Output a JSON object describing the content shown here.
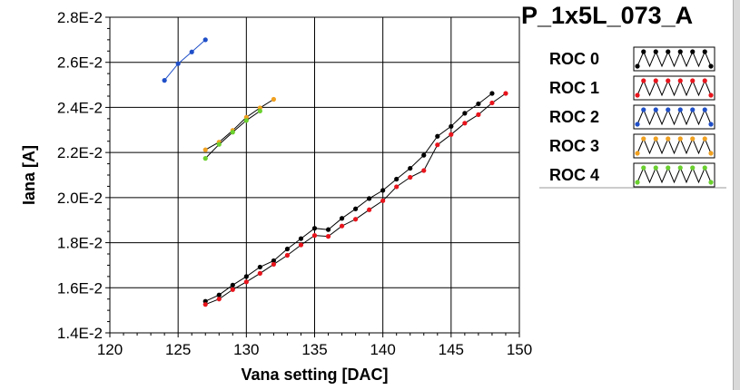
{
  "chart_data": {
    "type": "line",
    "title": "P_1x5L_073_A",
    "xlabel": "Vana setting [DAC]",
    "ylabel": "Iana [A]",
    "xlim": [
      120,
      150
    ],
    "ylim": [
      0.014,
      0.028
    ],
    "x_ticks": [
      120,
      125,
      130,
      135,
      140,
      145,
      150
    ],
    "x_tick_labels": [
      "120",
      "125",
      "130",
      "135",
      "140",
      "145",
      "150"
    ],
    "y_ticks": [
      0.014,
      0.016,
      0.018,
      0.02,
      0.022,
      0.024,
      0.026,
      0.028
    ],
    "y_tick_labels": [
      "1.4E-2",
      "1.6E-2",
      "1.8E-2",
      "2.0E-2",
      "2.2E-2",
      "2.4E-2",
      "2.6E-2",
      "2.8E-2"
    ],
    "grid": true,
    "legend_position": "top-right",
    "series": [
      {
        "name": "ROC 0",
        "color": "#000000",
        "x": [
          127,
          128,
          129,
          130,
          131,
          132,
          133,
          134,
          135,
          136,
          137,
          138,
          139,
          140,
          141,
          142,
          143,
          144,
          145,
          146,
          147,
          148
        ],
        "y": [
          0.0154,
          0.01568,
          0.01612,
          0.0165,
          0.01692,
          0.0172,
          0.01772,
          0.01818,
          0.01864,
          0.01858,
          0.01908,
          0.0195,
          0.01996,
          0.02032,
          0.02082,
          0.0213,
          0.02188,
          0.02272,
          0.02316,
          0.02374,
          0.02416,
          0.02462
        ]
      },
      {
        "name": "ROC 1",
        "color": "#e8141c",
        "x": [
          127,
          128,
          129,
          130,
          131,
          132,
          133,
          134,
          135,
          136,
          137,
          138,
          139,
          140,
          141,
          142,
          143,
          144,
          145,
          146,
          147,
          148,
          149
        ],
        "y": [
          0.01526,
          0.0155,
          0.01592,
          0.01626,
          0.01664,
          0.01704,
          0.01744,
          0.0179,
          0.01832,
          0.01828,
          0.01874,
          0.01904,
          0.01946,
          0.01986,
          0.02048,
          0.0209,
          0.0212,
          0.02234,
          0.0228,
          0.0233,
          0.02368,
          0.0242,
          0.02462
        ]
      },
      {
        "name": "ROC 2",
        "color": "#1f4fc8",
        "x": [
          124,
          125,
          126,
          127
        ],
        "y": [
          0.0252,
          0.02594,
          0.02646,
          0.027
        ]
      },
      {
        "name": "ROC 3",
        "color": "#f0a020",
        "x": [
          127,
          128,
          129,
          130,
          131,
          132
        ],
        "y": [
          0.02212,
          0.02246,
          0.02298,
          0.02356,
          0.02398,
          0.02436
        ]
      },
      {
        "name": "ROC 4",
        "color": "#6ad02e",
        "x": [
          127,
          128,
          129,
          130,
          131
        ],
        "y": [
          0.02174,
          0.02236,
          0.0229,
          0.02342,
          0.02384
        ]
      }
    ]
  }
}
